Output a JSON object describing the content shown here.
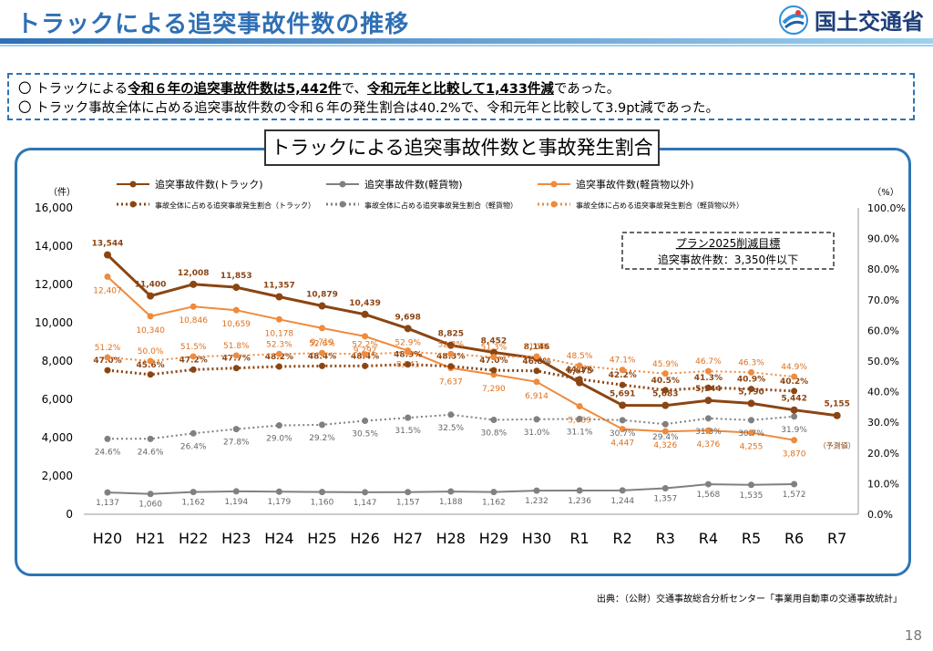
{
  "header": {
    "title": "トラックによる追突事故件数の推移",
    "logo_text": "国土交通省"
  },
  "summary": {
    "line1_pre": "〇 トラックによる",
    "line1_b1": "令和６年の追突事故件数は5,442件",
    "line1_mid": "で、",
    "line1_b2": "令和元年と比較して1,433件減",
    "line1_post": "であった。",
    "line2": "〇 トラック事故全体に占める追突事故件数の令和６年の発生割合は40.2%で、令和元年と比較して3.9pt減であった。"
  },
  "chart_data": {
    "type": "line",
    "title": "トラックによる追突事故件数と事故発生割合",
    "categories": [
      "H20",
      "H21",
      "H22",
      "H23",
      "H24",
      "H25",
      "H26",
      "H27",
      "H28",
      "H29",
      "H30",
      "R1",
      "R2",
      "R3",
      "R4",
      "R5",
      "R6",
      "R7"
    ],
    "y_left": {
      "unit": "（件）",
      "min": 0,
      "max": 16000,
      "ticks": [
        "0",
        "2,000",
        "4,000",
        "6,000",
        "8,000",
        "10,000",
        "12,000",
        "14,000",
        "16,000"
      ]
    },
    "y_right": {
      "unit": "（%）",
      "min": 0,
      "max": 100,
      "ticks": [
        "0.0%",
        "10.0%",
        "20.0%",
        "30.0%",
        "40.0%",
        "50.0%",
        "60.0%",
        "70.0%",
        "80.0%",
        "90.0%",
        "100.0%"
      ]
    },
    "series": [
      {
        "name": "追突事故件数(トラック)",
        "axis": "left",
        "color": "#8b4513",
        "style": "solid",
        "width": 3,
        "values": [
          13544,
          11400,
          12008,
          11853,
          11357,
          10879,
          10439,
          9698,
          8825,
          8452,
          8146,
          6875,
          5691,
          5683,
          5944,
          5790,
          5442,
          5155
        ],
        "labels": [
          "13,544",
          "11,400",
          "12,008",
          "11,853",
          "11,357",
          "10,879",
          "10,439",
          "9,698",
          "8,825",
          "8,452",
          "8,146",
          "6,875",
          "5,691",
          "5,683",
          "5,944",
          "5,790",
          "5,442",
          "5,155"
        ]
      },
      {
        "name": "追突事故件数(軽貨物)",
        "axis": "left",
        "color": "#808080",
        "style": "solid",
        "width": 2,
        "values": [
          1137,
          1060,
          1162,
          1194,
          1179,
          1160,
          1147,
          1157,
          1188,
          1162,
          1232,
          1236,
          1244,
          1357,
          1568,
          1535,
          1572,
          null
        ],
        "labels": [
          "1,137",
          "1,060",
          "1,162",
          "1,194",
          "1,179",
          "1,160",
          "1,147",
          "1,157",
          "1,188",
          "1,162",
          "1,232",
          "1,236",
          "1,244",
          "1,357",
          "1,568",
          "1,535",
          "1,572",
          ""
        ]
      },
      {
        "name": "追突事故件数(軽貨物以外)",
        "axis": "left",
        "color": "#f08a3c",
        "style": "solid",
        "width": 2,
        "values": [
          12407,
          10340,
          10846,
          10659,
          10178,
          9719,
          9292,
          8541,
          7637,
          7290,
          6914,
          5639,
          4447,
          4326,
          4376,
          4255,
          3870,
          null
        ],
        "labels": [
          "12,407",
          "10,340",
          "10,846",
          "10,659",
          "10,178",
          "9,719",
          "9,292",
          "8,541",
          "7,637",
          "7,290",
          "6,914",
          "5,639",
          "4,447",
          "4,326",
          "4,376",
          "4,255",
          "3,870",
          ""
        ]
      },
      {
        "name": "事故全体に占める追突事故発生割合（トラック）",
        "axis": "right",
        "color": "#8b4513",
        "style": "dotted",
        "width": 3,
        "values": [
          47.0,
          45.6,
          47.2,
          47.7,
          48.2,
          48.4,
          48.4,
          48.9,
          48.3,
          47.0,
          46.8,
          44.1,
          42.2,
          40.5,
          41.3,
          40.9,
          40.2,
          null
        ],
        "labels": [
          "47.0%",
          "45.6%",
          "47.2%",
          "47.7%",
          "48.2%",
          "48.4%",
          "48.4%",
          "48.9%",
          "48.3%",
          "47.0%",
          "46.8%",
          "44.1%",
          "42.2%",
          "40.5%",
          "41.3%",
          "40.9%",
          "40.2%",
          ""
        ]
      },
      {
        "name": "事故全体に占める追突事故発生割合（軽貨物）",
        "axis": "right",
        "color": "#808080",
        "style": "dotted",
        "width": 2,
        "values": [
          24.6,
          24.6,
          26.4,
          27.8,
          29.0,
          29.2,
          30.5,
          31.5,
          32.5,
          30.8,
          31.0,
          31.1,
          30.7,
          29.4,
          31.3,
          30.7,
          31.9,
          null
        ],
        "labels": [
          "24.6%",
          "24.6%",
          "26.4%",
          "27.8%",
          "29.0%",
          "29.2%",
          "30.5%",
          "31.5%",
          "32.5%",
          "30.8%",
          "31.0%",
          "31.1%",
          "30.7%",
          "29.4%",
          "31.3%",
          "30.7%",
          "31.9%",
          ""
        ]
      },
      {
        "name": "事故全体に占める追突事故発生割合（軽貨物以外）",
        "axis": "right",
        "color": "#f08a3c",
        "style": "dotted",
        "width": 2,
        "values": [
          51.2,
          50.0,
          51.5,
          51.8,
          52.3,
          52.6,
          52.2,
          52.9,
          52.3,
          51.3,
          51.5,
          48.5,
          47.1,
          45.9,
          46.7,
          46.3,
          44.9,
          null
        ],
        "labels": [
          "51.2%",
          "50.0%",
          "51.5%",
          "51.8%",
          "52.3%",
          "52.6%",
          "52.2%",
          "52.9%",
          "52.3%",
          "51.3%",
          "51.5%",
          "48.5%",
          "47.1%",
          "45.9%",
          "46.7%",
          "46.3%",
          "44.9%",
          ""
        ]
      }
    ],
    "annotations": {
      "target_line1": "プラン2025削減目標",
      "target_line2": "追突事故件数：3,350件以下",
      "forecast_note": "（予測値）"
    },
    "grid": false,
    "legend_position": "top"
  },
  "footer": {
    "source": "出典：（公財）交通事故総合分析センター「事業用自動車の交通事故統計」",
    "page": "18"
  }
}
